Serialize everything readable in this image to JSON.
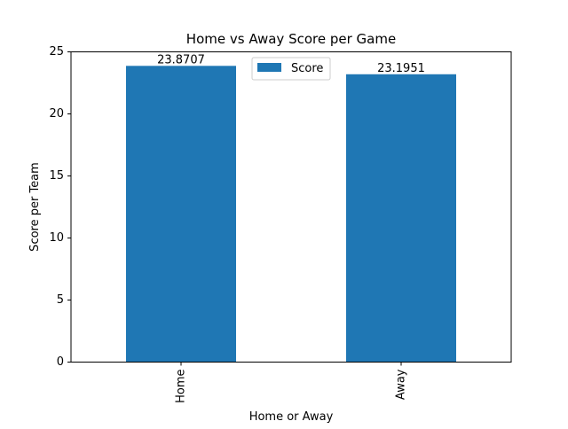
{
  "chart_data": {
    "type": "bar",
    "title": "Home vs Away Score per Game",
    "xlabel": "Home or Away",
    "ylabel": "Score per Team",
    "categories": [
      "Home",
      "Away"
    ],
    "series": [
      {
        "name": "Score",
        "values": [
          23.8707,
          23.1951
        ],
        "labels": [
          "23.8707",
          "23.1951"
        ]
      }
    ],
    "ylim": [
      0,
      25
    ],
    "yticks": [
      0,
      5,
      10,
      15,
      20,
      25
    ],
    "ytick_labels": [
      "0",
      "5",
      "10",
      "15",
      "20",
      "25"
    ],
    "legend": {
      "entries": [
        "Score"
      ],
      "placement": "top-center"
    },
    "grid": false,
    "bar_color": "#1f77b4"
  }
}
